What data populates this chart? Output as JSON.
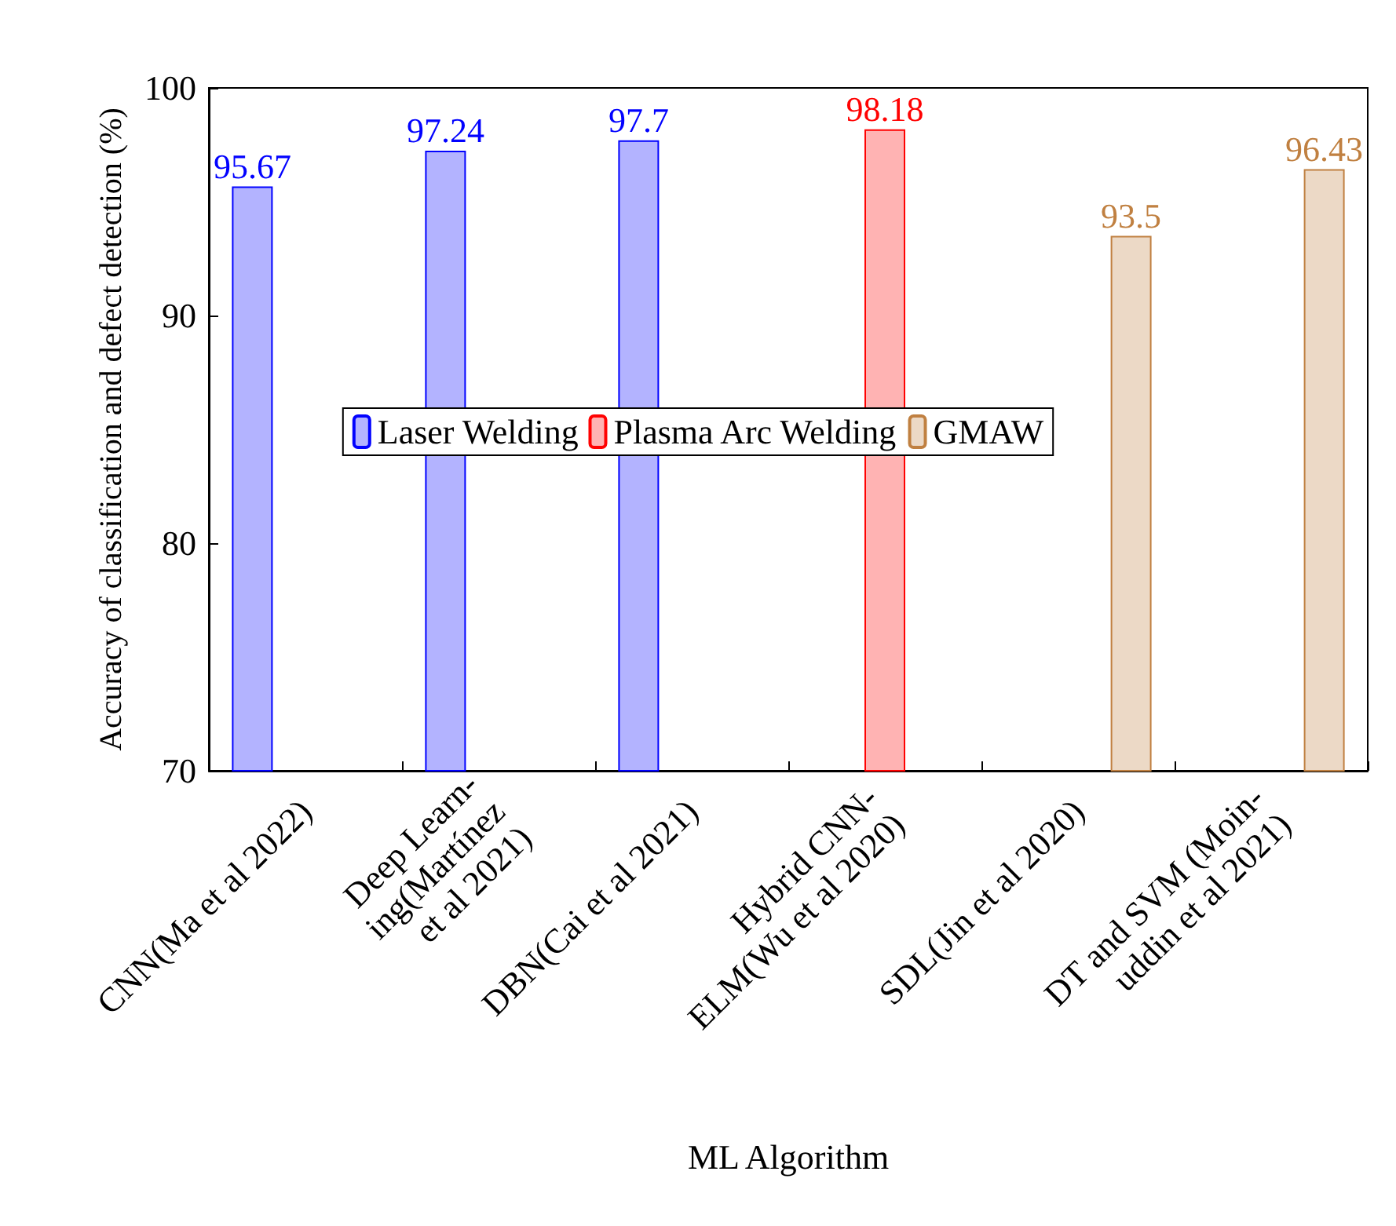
{
  "chart_data": {
    "type": "bar",
    "xlabel": "ML Algorithm",
    "ylabel": "Accuracy of classification and defect detection (%)",
    "categories": [
      "CNN(Ma et al 2022)",
      "Deep Learn-\ning(Martínez\net al 2021)",
      "DBN(Cai et al 2021)",
      "Hybrid CNN-\nELM(Wu et al 2020)",
      "SDL(Jin et al 2020)",
      "DT and SVM (Moin-\nuddin et al 2021)"
    ],
    "series": [
      {
        "name": "Laser Welding",
        "color": "#b3b3ff",
        "values": [
          95.67,
          97.24,
          97.7,
          null,
          null,
          null
        ]
      },
      {
        "name": "Plasma Arc Welding",
        "color": "#ffb3b3",
        "values": [
          null,
          null,
          null,
          98.18,
          null,
          null
        ]
      },
      {
        "name": "GMAW",
        "color": "#ecd9c6",
        "values": [
          null,
          null,
          null,
          null,
          93.5,
          96.43
        ]
      }
    ],
    "ylim": [
      70,
      100
    ],
    "yticks": [
      70,
      80,
      90,
      100
    ],
    "grid": false,
    "legend": "center",
    "data_labels": true
  }
}
